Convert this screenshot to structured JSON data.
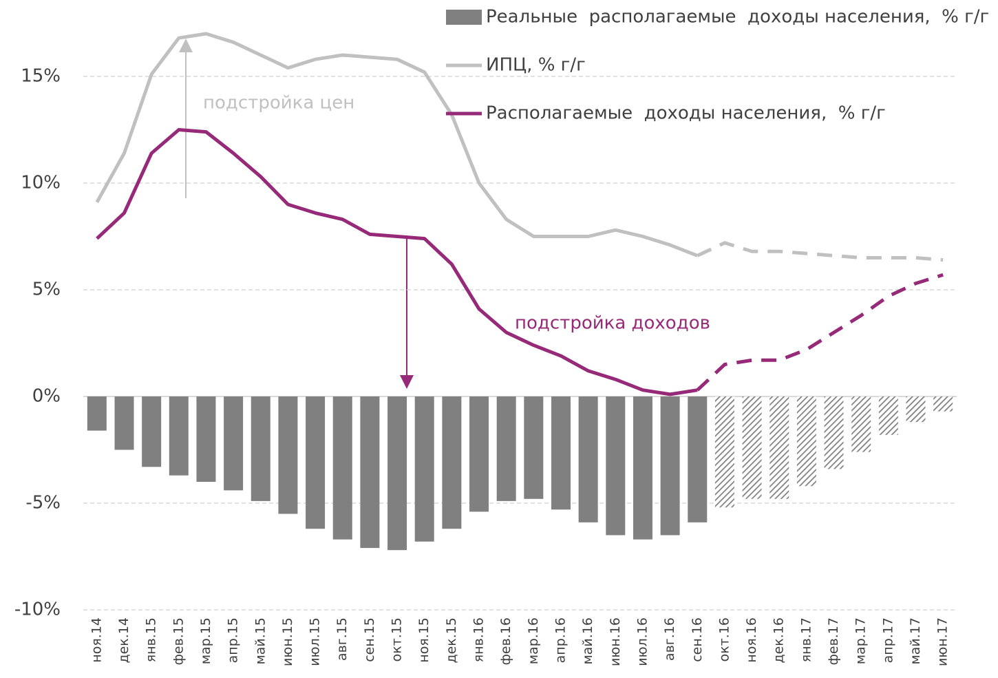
{
  "chart_data": {
    "type": "bar_line",
    "categories": [
      "ноя.14",
      "дек.14",
      "янв.15",
      "фев.15",
      "мар.15",
      "апр.15",
      "май.15",
      "июн.15",
      "июл.15",
      "авг.15",
      "сен.15",
      "окт.15",
      "ноя.15",
      "дек.15",
      "янв.16",
      "фев.16",
      "мар.16",
      "апр.16",
      "май.16",
      "июн.16",
      "июл.16",
      "авг.16",
      "сен.16",
      "окт.16",
      "ноя.16",
      "дек.16",
      "янв.17",
      "фев.17",
      "мар.17",
      "апр.17",
      "май.17",
      "июн.17"
    ],
    "series": [
      {
        "name": "Реальные  располагаемые  доходы населения,  % г/г",
        "type": "bar",
        "color": "#808080",
        "values": [
          -1.6,
          -2.5,
          -3.3,
          -3.7,
          -4.0,
          -4.4,
          -4.9,
          -5.5,
          -6.2,
          -6.7,
          -7.1,
          -7.2,
          -6.8,
          -6.2,
          -5.4,
          -4.9,
          -4.8,
          -5.3,
          -5.9,
          -6.5,
          -6.7,
          -6.5,
          -5.9,
          -5.2,
          -4.8,
          -4.8,
          -4.2,
          -3.4,
          -2.6,
          -1.8,
          -1.2,
          -0.7
        ]
      },
      {
        "name": "ИПЦ, % г/г",
        "type": "line",
        "color": "#c0c0c0",
        "values": [
          9.1,
          11.4,
          15.1,
          16.8,
          17.0,
          16.6,
          16.0,
          15.4,
          15.8,
          16.0,
          15.9,
          15.8,
          15.2,
          13.2,
          10.0,
          8.3,
          7.5,
          7.5,
          7.5,
          7.8,
          7.5,
          7.1,
          6.6,
          7.2,
          6.8,
          6.8,
          6.7,
          6.6,
          6.5,
          6.5,
          6.5,
          6.4
        ]
      },
      {
        "name": "Располагаемые  доходы населения,  % г/г",
        "type": "line",
        "color": "#962a78",
        "values": [
          7.4,
          8.6,
          11.4,
          12.5,
          12.4,
          11.4,
          10.3,
          9.0,
          8.6,
          8.3,
          7.6,
          7.5,
          7.4,
          6.2,
          4.1,
          3.0,
          2.4,
          1.9,
          1.2,
          0.8,
          0.3,
          0.1,
          0.3,
          1.5,
          1.7,
          1.7,
          2.2,
          3.0,
          3.8,
          4.7,
          5.3,
          5.7
        ]
      }
    ],
    "forecast_from": 23,
    "annotations": [
      {
        "text": "подстройка цен",
        "color": "#c0c0c0"
      },
      {
        "text": "подстройка доходов",
        "color": "#962a78"
      }
    ],
    "ylim": [
      -10,
      18
    ],
    "yticks": [
      {
        "value": -10,
        "label": "-10%"
      },
      {
        "value": -5,
        "label": "-5%"
      },
      {
        "value": 0,
        "label": "0%"
      },
      {
        "value": 5,
        "label": "5%"
      },
      {
        "value": 10,
        "label": "10%"
      },
      {
        "value": 15,
        "label": "15%"
      }
    ],
    "grid": true,
    "legend": "top-right"
  }
}
